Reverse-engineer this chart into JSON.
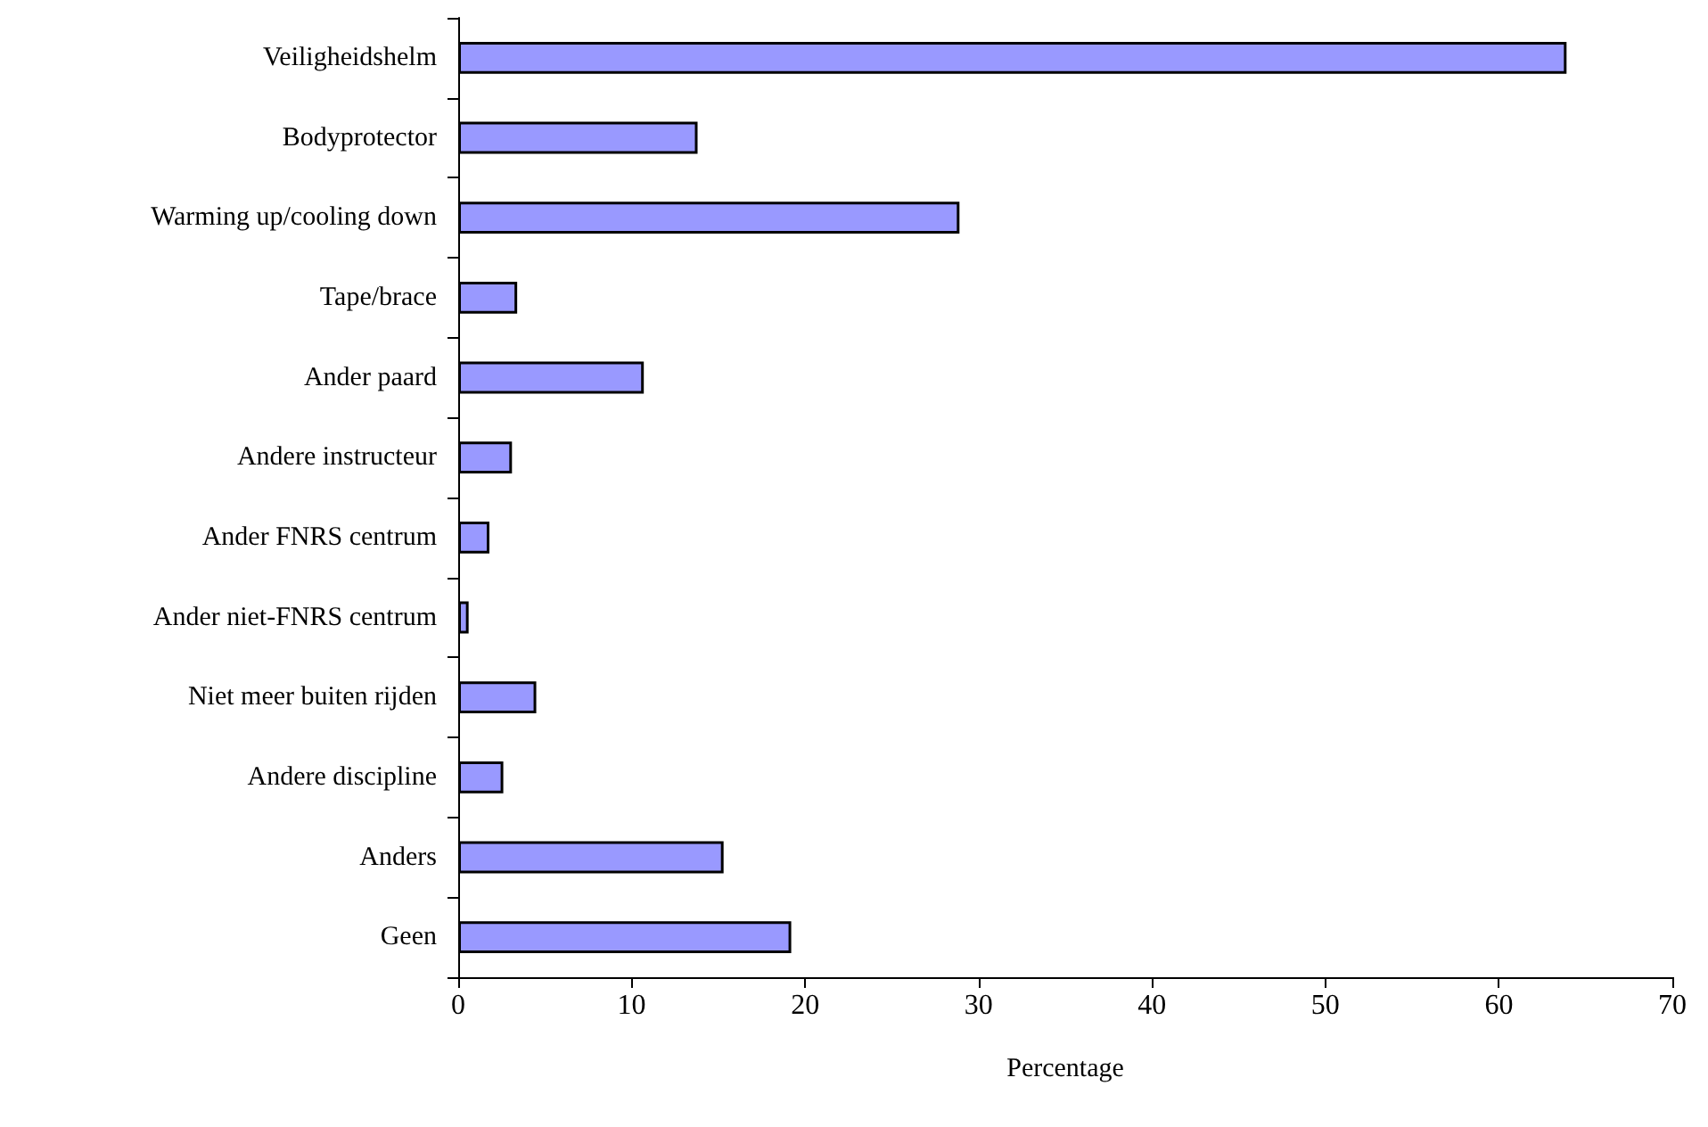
{
  "chart_data": {
    "type": "bar",
    "orientation": "horizontal",
    "xlabel": "Percentage",
    "categories": [
      "Veiligheidshelm",
      "Bodyprotector",
      "Warming up/cooling down",
      "Tape/brace",
      "Ander paard",
      "Andere instructeur",
      "Ander FNRS centrum",
      "Ander niet-FNRS centrum",
      "Niet meer buiten rijden",
      "Andere discipline",
      "Anders",
      "Geen"
    ],
    "values": [
      63.9,
      13.8,
      28.9,
      3.4,
      10.7,
      3.1,
      1.8,
      0.6,
      4.5,
      2.6,
      15.3,
      19.2
    ],
    "color": "#9999ff",
    "xlim": [
      0,
      70
    ],
    "xticks": [
      0,
      10,
      20,
      30,
      40,
      50,
      60,
      70
    ]
  }
}
